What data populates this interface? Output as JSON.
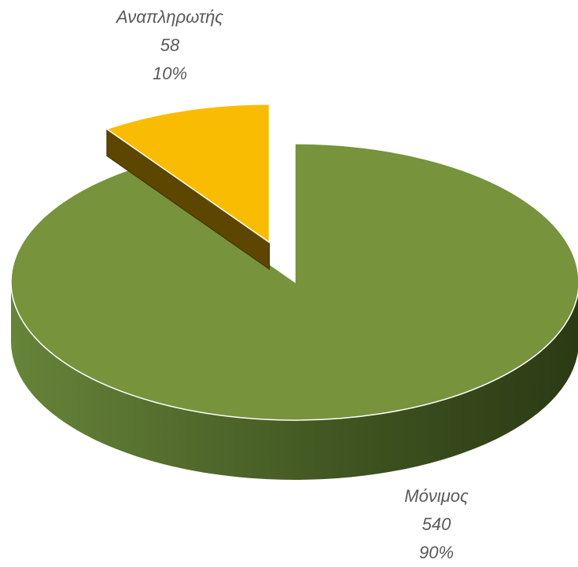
{
  "chart_data": {
    "type": "pie",
    "categories": [
      "Μόνιμος",
      "Αναπληρωτής"
    ],
    "values": [
      540,
      58
    ],
    "percent_labels": [
      "90%",
      "10%"
    ],
    "colors": [
      "#77933c",
      "#f9bc02"
    ]
  }
}
